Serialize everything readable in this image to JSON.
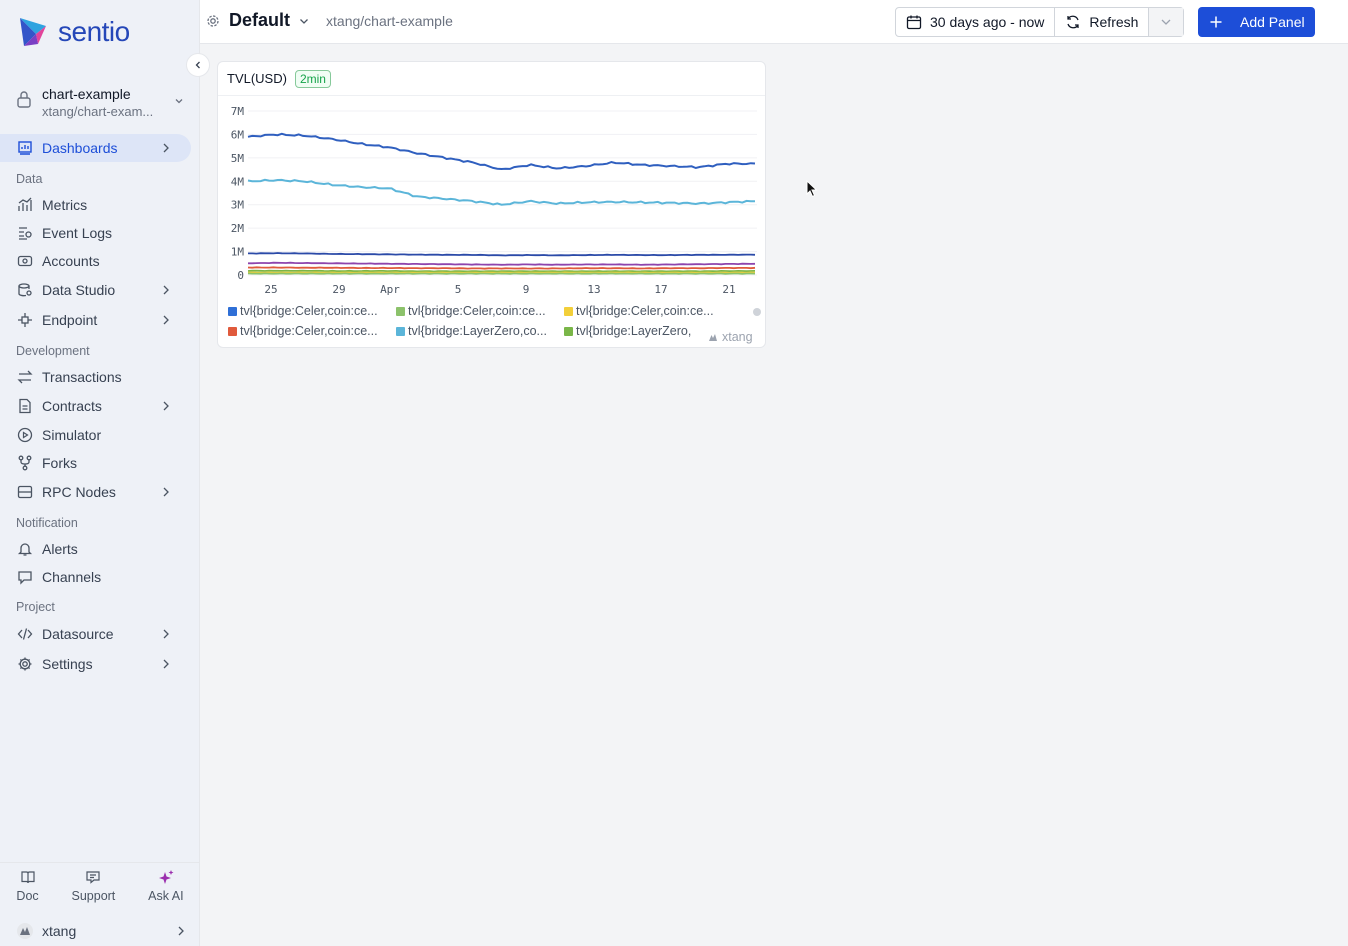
{
  "brand": {
    "name": "sentio"
  },
  "project": {
    "name": "chart-example",
    "path": "xtang/chart-exam..."
  },
  "nav": {
    "dashboards": "Dashboards",
    "section_data": "Data",
    "metrics": "Metrics",
    "event_logs": "Event Logs",
    "accounts": "Accounts",
    "data_studio": "Data Studio",
    "endpoint": "Endpoint",
    "section_development": "Development",
    "transactions": "Transactions",
    "contracts": "Contracts",
    "simulator": "Simulator",
    "forks": "Forks",
    "rpc_nodes": "RPC Nodes",
    "section_notification": "Notification",
    "alerts": "Alerts",
    "channels": "Channels",
    "section_project": "Project",
    "datasource": "Datasource",
    "settings": "Settings"
  },
  "bottom": {
    "doc": "Doc",
    "support": "Support",
    "ask_ai": "Ask AI",
    "user": "xtang"
  },
  "header": {
    "title": "Default",
    "path": "xtang/chart-example",
    "time_range": "30 days ago - now",
    "refresh": "Refresh",
    "add_panel": "Add Panel"
  },
  "panel": {
    "title": "TVL(USD)",
    "badge": "2min",
    "watermark": "xtang"
  },
  "colors": {
    "accent": "#1d4ed8",
    "badge_green": "#16a34a"
  },
  "chart_data": {
    "type": "line",
    "title": "TVL(USD)",
    "y_ticks": [
      "7M",
      "6M",
      "5M",
      "4M",
      "3M",
      "2M",
      "1M",
      "0"
    ],
    "x_ticks": [
      "25",
      "29",
      "Apr",
      "5",
      "9",
      "13",
      "17",
      "21"
    ],
    "ylim": [
      0,
      7000000
    ],
    "grid": true,
    "legend_position": "bottom",
    "series": [
      {
        "name": "tvl{bridge:Celer,coin:ce...",
        "color": "#2f5fbf",
        "values": [
          5.9,
          6.0,
          5.95,
          5.8,
          5.6,
          5.45,
          5.2,
          5.0,
          4.8,
          4.5,
          4.7,
          4.55,
          4.65,
          4.8,
          4.7,
          4.65,
          4.6,
          4.75,
          4.75
        ]
      },
      {
        "name": "tvl{bridge:LayerZero,co...",
        "color": "#5bb5d9",
        "values": [
          4.0,
          4.05,
          4.0,
          3.85,
          3.75,
          3.7,
          3.35,
          3.25,
          3.15,
          3.0,
          3.15,
          3.05,
          3.1,
          3.12,
          3.1,
          3.08,
          3.05,
          3.1,
          3.15
        ]
      },
      {
        "name": "tvl{bridge:Celer,coin:ce...",
        "color": "#2b4aa8",
        "values": [
          0.92,
          0.93,
          0.92,
          0.9,
          0.89,
          0.88,
          0.87,
          0.86,
          0.86,
          0.84,
          0.85,
          0.84,
          0.85,
          0.86,
          0.85,
          0.85,
          0.86,
          0.86,
          0.87
        ]
      },
      {
        "name": "tvl{bridge:Celer,coin:ce...",
        "color": "#8e44ad",
        "values": [
          0.5,
          0.52,
          0.51,
          0.5,
          0.49,
          0.48,
          0.47,
          0.46,
          0.45,
          0.44,
          0.45,
          0.44,
          0.45,
          0.45,
          0.44,
          0.45,
          0.46,
          0.47,
          0.48
        ]
      },
      {
        "name": "tvl{bridge:Celer,coin:ce...",
        "color": "#e05a3c",
        "values": [
          0.32,
          0.32,
          0.31,
          0.31,
          0.3,
          0.3,
          0.29,
          0.29,
          0.28,
          0.28,
          0.28,
          0.28,
          0.29,
          0.29,
          0.28,
          0.29,
          0.29,
          0.3,
          0.3
        ]
      },
      {
        "name": "tvl{bridge:LayerZero,...",
        "color": "#7ab648",
        "values": [
          0.18,
          0.18,
          0.18,
          0.17,
          0.17,
          0.17,
          0.16,
          0.16,
          0.16,
          0.16,
          0.16,
          0.16,
          0.16,
          0.16,
          0.16,
          0.16,
          0.16,
          0.17,
          0.17
        ]
      },
      {
        "name": "tvl{bridge:Celer,coin:ce...",
        "color": "#f2cf3a",
        "values": [
          0.1,
          0.1,
          0.1,
          0.1,
          0.1,
          0.1,
          0.1,
          0.1,
          0.1,
          0.1,
          0.1,
          0.1,
          0.1,
          0.1,
          0.1,
          0.1,
          0.1,
          0.1,
          0.1
        ]
      },
      {
        "name": "tvl{bridge:Celer,coin:ce...",
        "color": "#8cc26b",
        "values": [
          0.06,
          0.06,
          0.06,
          0.06,
          0.06,
          0.06,
          0.06,
          0.06,
          0.06,
          0.06,
          0.06,
          0.06,
          0.06,
          0.06,
          0.06,
          0.06,
          0.06,
          0.06,
          0.06
        ]
      }
    ],
    "legend": [
      {
        "label": "tvl{bridge:Celer,coin:ce...",
        "color": "#2f6fd6"
      },
      {
        "label": "tvl{bridge:Celer,coin:ce...",
        "color": "#8cc26b"
      },
      {
        "label": "tvl{bridge:Celer,coin:ce...",
        "color": "#f2cf3a"
      },
      {
        "label": "tvl{bridge:Celer,coin:ce...",
        "color": "#e05a3c"
      },
      {
        "label": "tvl{bridge:LayerZero,co...",
        "color": "#5bb5d9"
      },
      {
        "label": "tvl{bridge:LayerZero,",
        "color": "#7ab648"
      }
    ]
  }
}
